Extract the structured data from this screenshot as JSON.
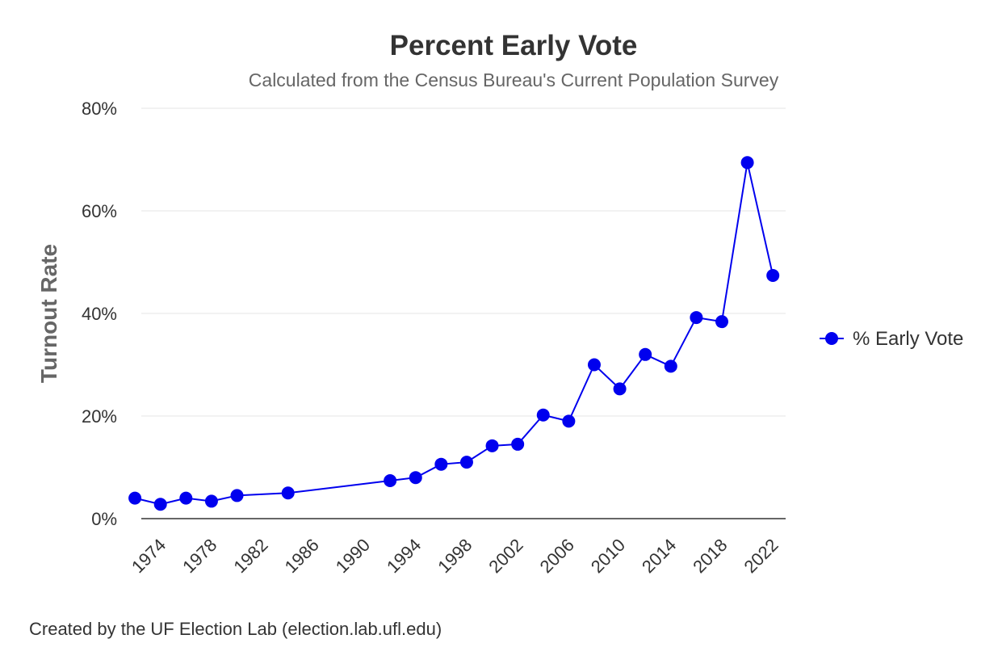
{
  "chart_data": {
    "type": "line",
    "title": "Percent Early Vote",
    "subtitle": "Calculated from the Census Bureau's Current Population Survey",
    "ylabel": "Turnout Rate",
    "xlabel": "",
    "ylim": [
      0,
      80
    ],
    "xlim": [
      1972.5,
      2023
    ],
    "yticks": [
      "0%",
      "20%",
      "40%",
      "60%",
      "80%"
    ],
    "ytick_values": [
      0,
      20,
      40,
      60,
      80
    ],
    "xticks": [
      "1974",
      "1978",
      "1982",
      "1986",
      "1990",
      "1994",
      "1998",
      "2002",
      "2006",
      "2010",
      "2014",
      "2018",
      "2022"
    ],
    "xtick_values": [
      1974,
      1978,
      1982,
      1986,
      1990,
      1994,
      1998,
      2002,
      2006,
      2010,
      2014,
      2018,
      2022
    ],
    "grid": true,
    "legend_position": "right",
    "series": [
      {
        "name": "% Early Vote",
        "color": "#0000ee",
        "x": [
          1972,
          1974,
          1976,
          1978,
          1980,
          1984,
          1992,
          1994,
          1996,
          1998,
          2000,
          2002,
          2004,
          2006,
          2008,
          2010,
          2012,
          2014,
          2016,
          2018,
          2020,
          2022
        ],
        "y": [
          4.0,
          2.8,
          4.0,
          3.4,
          4.5,
          5.0,
          7.4,
          8.0,
          10.6,
          11.0,
          14.2,
          14.5,
          20.2,
          19.0,
          30.0,
          25.3,
          32.0,
          29.7,
          39.2,
          38.4,
          69.4,
          47.4
        ]
      }
    ]
  },
  "credits": "Created by the UF Election Lab (election.lab.ufl.edu)"
}
